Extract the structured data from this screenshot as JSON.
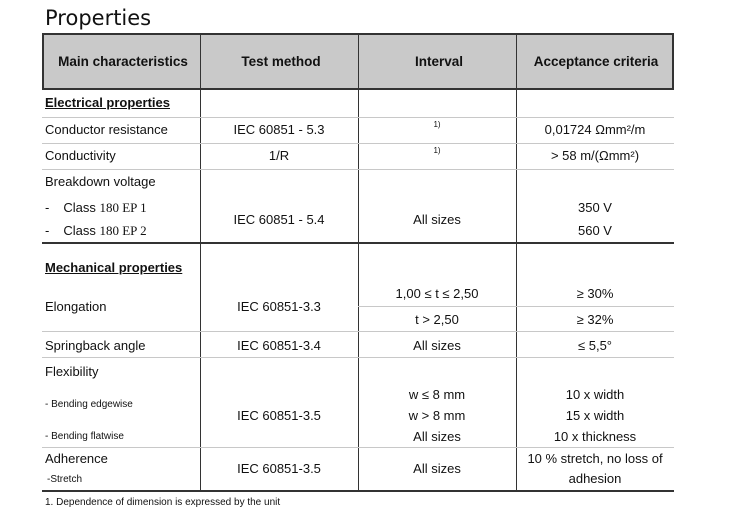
{
  "title": "Properties",
  "headers": [
    "Main characteristics",
    "Test method",
    "Interval",
    "Acceptance criteria"
  ],
  "electrical": {
    "section_label": "Electrical properties",
    "conductor_resistance": {
      "label": "Conductor resistance",
      "method": "IEC 60851 - 5.3",
      "interval": "1)",
      "criteria": "0,01724 Ωmm²/m"
    },
    "conductivity": {
      "label": "Conductivity",
      "method": "1/R",
      "interval": "1)",
      "criteria": "> 58 m/(Ωmm²)"
    },
    "breakdown": {
      "label": "Breakdown voltage",
      "class1_dash": "-",
      "class1_prefix": "Class ",
      "class1_value": "180 EP 1",
      "class2_dash": "-",
      "class2_prefix": "Class ",
      "class2_value": "180 EP 2",
      "method": "IEC 60851 - 5.4",
      "interval": "All sizes",
      "criteria1": "350 V",
      "criteria2": "560 V"
    }
  },
  "mechanical": {
    "section_label": "Mechanical properties",
    "elongation": {
      "label": "Elongation",
      "method": "IEC 60851-3.3",
      "interval1": "1,00 ≤ t ≤ 2,50",
      "criteria1": "≥ 30%",
      "interval2": "t > 2,50",
      "criteria2": "≥ 32%"
    },
    "springback": {
      "label": "Springback angle",
      "method": "IEC 60851-3.4",
      "interval": "All sizes",
      "criteria": "≤ 5,5°"
    },
    "flexibility": {
      "label": "Flexibility",
      "sub1": "- Bending edgewise",
      "sub2": "- Bending flatwise",
      "method": "IEC 60851-3.5",
      "interval1": "w ≤ 8 mm",
      "interval2": "w > 8 mm",
      "interval3": "All sizes",
      "criteria1": "10 x width",
      "criteria2": "15 x width",
      "criteria3": "10 x thickness"
    },
    "adherence": {
      "label": "Adherence",
      "sub": "-Stretch",
      "method": "IEC 60851-3.5",
      "interval": "All sizes",
      "criteria1": "10 % stretch, no loss of",
      "criteria2": "adhesion"
    }
  },
  "footnote": "1. Dependence of dimension is expressed by the unit"
}
